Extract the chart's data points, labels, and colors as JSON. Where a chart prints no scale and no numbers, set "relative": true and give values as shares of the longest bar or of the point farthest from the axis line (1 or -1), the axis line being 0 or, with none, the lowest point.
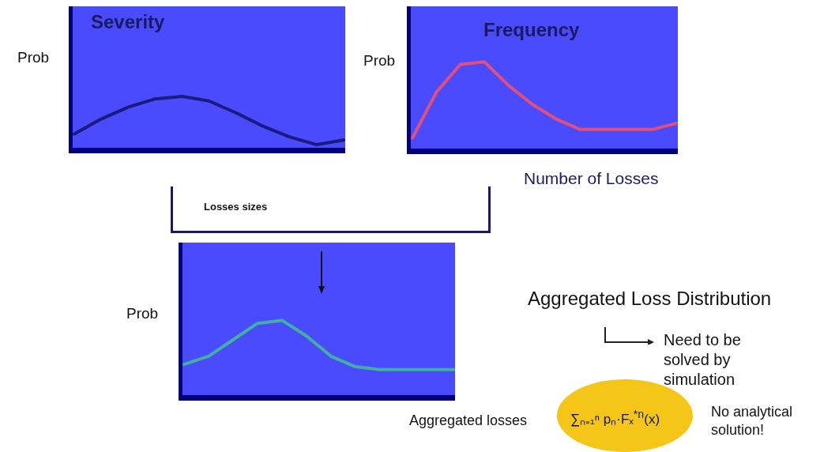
{
  "chart_data": [
    {
      "type": "line",
      "title": "Severity",
      "ylabel": "Prob",
      "annotations": [
        "Losses sizes"
      ],
      "relative": true,
      "marker": "none",
      "categories": [
        null,
        null,
        null,
        null,
        null,
        null,
        null,
        null,
        null,
        null,
        null
      ],
      "series": [
        {
          "color": "#1a1a80",
          "values": [
            0.27,
            0.56,
            0.79,
            0.95,
            1,
            0.91,
            0.68,
            0.42,
            0.21,
            0.06,
            0.15
          ]
        }
      ]
    },
    {
      "type": "line",
      "title": "Frequency",
      "ylabel": "Prob",
      "xlabel": "Number of Losses",
      "relative": true,
      "marker": "none",
      "categories": [
        null,
        null,
        null,
        null,
        null,
        null,
        null,
        null,
        null,
        null,
        null,
        null
      ],
      "series": [
        {
          "color": "#e0507a",
          "values": [
            0.12,
            0.65,
            0.97,
            1,
            0.73,
            0.51,
            0.34,
            0.22,
            0.22,
            0.22,
            0.22,
            0.29
          ]
        }
      ]
    },
    {
      "type": "line",
      "ylabel": "Prob",
      "annotations": [
        "Aggregated Loss Distribution",
        "Need to be solved by simulation",
        "Aggregated losses",
        "∑ₙ₌₁ⁿ pₙ·Fₓ$^{*n}$(x)",
        "No analytical solution!"
      ],
      "relative": true,
      "marker": "none",
      "categories": [
        null,
        null,
        null,
        null,
        null,
        null,
        null,
        null,
        null,
        null,
        null,
        null
      ],
      "series": [
        {
          "color": "#40b0a0",
          "values": [
            0.41,
            0.52,
            0.74,
            0.96,
            1,
            0.79,
            0.52,
            0.38,
            0.34,
            0.34,
            0.34,
            0.34
          ]
        }
      ]
    }
  ]
}
